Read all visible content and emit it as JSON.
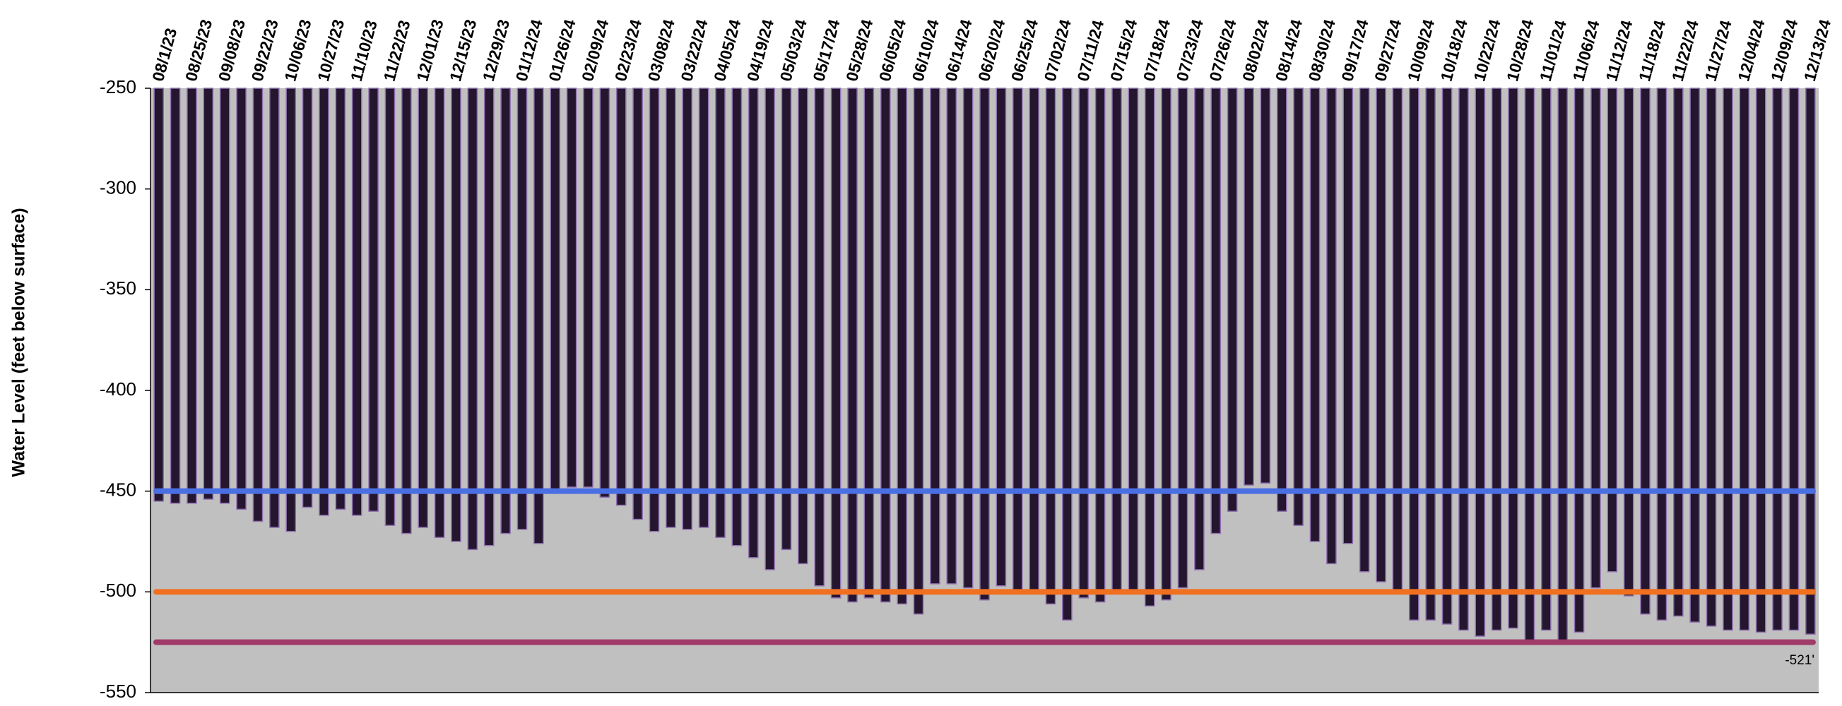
{
  "chart_data": {
    "type": "bar",
    "y_label": "Water Level (feet below surface)",
    "categories": [
      "08/1/23",
      null,
      "08/25/23",
      null,
      "09/08/23",
      null,
      "09/22/23",
      null,
      "10/06/23",
      null,
      "10/27/23",
      null,
      "11/10/23",
      null,
      "11/22/23",
      null,
      "12/01/23",
      null,
      "12/15/23",
      null,
      "12/29/23",
      null,
      "01/12/24",
      null,
      "01/26/24",
      null,
      "02/09/24",
      null,
      "02/23/24",
      null,
      "03/08/24",
      null,
      "03/22/24",
      null,
      "04/05/24",
      null,
      "04/19/24",
      null,
      "05/03/24",
      null,
      "05/17/24",
      null,
      "05/28/24",
      null,
      "06/05/24",
      null,
      "06/10/24",
      null,
      "06/14/24",
      null,
      "06/20/24",
      null,
      "06/25/24",
      null,
      "07/02/24",
      null,
      "07/11/24",
      null,
      "07/15/24",
      null,
      "07/18/24",
      null,
      "07/23/24",
      null,
      "07/26/24",
      null,
      "08/02/24",
      null,
      "08/14/24",
      null,
      "08/30/24",
      null,
      "09/17/24",
      null,
      "09/27/24",
      null,
      "10/09/24",
      null,
      "10/18/24",
      null,
      "10/22/24",
      null,
      "10/28/24",
      null,
      "11/01/24",
      null,
      "11/06/24",
      null,
      "11/12/24",
      null,
      "11/18/24",
      null,
      "11/22/24",
      null,
      "11/27/24",
      null,
      "12/04/24",
      null,
      "12/09/24",
      null,
      "12/13/24"
    ],
    "values": [
      -455,
      -456,
      -456,
      -454,
      -456,
      -459,
      -465,
      -468,
      -470,
      -458,
      -462,
      -459,
      -462,
      -460,
      -467,
      -471,
      -468,
      -473,
      -475,
      -479,
      -477,
      -471,
      -469,
      -476,
      -449,
      -448,
      -448,
      -453,
      -457,
      -464,
      -470,
      -468,
      -469,
      -468,
      -473,
      -477,
      -483,
      -489,
      -479,
      -486,
      -497,
      -503,
      -505,
      -503,
      -505,
      -506,
      -511,
      -496,
      -496,
      -498,
      -504,
      -497,
      -499,
      -499,
      -506,
      -514,
      -503,
      -505,
      -499,
      -499,
      -507,
      -504,
      -498,
      -489,
      -471,
      -460,
      -447,
      -446,
      -460,
      -467,
      -475,
      -486,
      -476,
      -490,
      -495,
      -499,
      -514,
      -514,
      -516,
      -519,
      -522,
      -519,
      -518,
      -524,
      -519,
      -524,
      -520,
      -498,
      -490,
      -502,
      -511,
      -514,
      -512,
      -515,
      -517,
      -519,
      -519,
      -520,
      -519,
      -519,
      -521
    ],
    "color": "#24162e",
    "edge_color": "#9070b0",
    "reference_lines": [
      {
        "value": -450,
        "color": "#4a6fe3"
      },
      {
        "value": -500,
        "color": "#f07020"
      },
      {
        "value": -525,
        "color": "#a03a68"
      }
    ],
    "annotation": "-521'",
    "plot_background": "#c0c0c0",
    "ylim": [
      -550,
      -250
    ],
    "yticks": [
      -550,
      -500,
      -450,
      -400,
      -350,
      -300,
      -250
    ]
  }
}
